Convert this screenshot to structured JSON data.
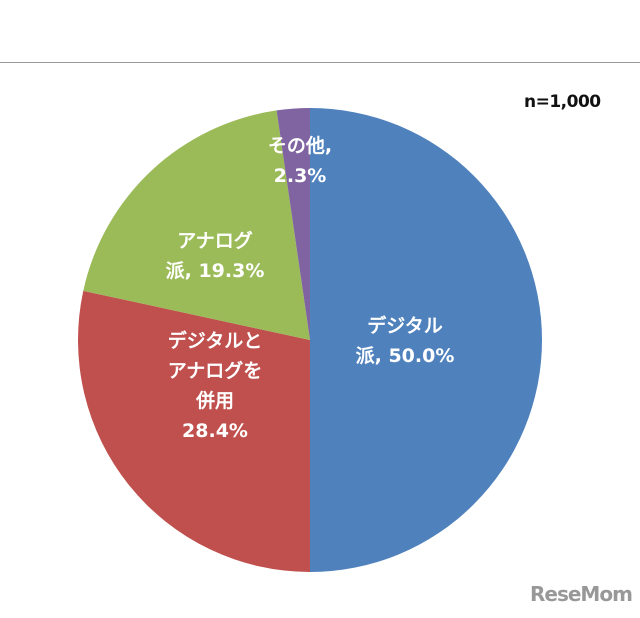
{
  "header": {
    "sample_size": "n=1,000"
  },
  "chart_data": {
    "type": "pie",
    "slices": [
      {
        "label_lines": [
          "デジタル",
          "派, 50.0%"
        ],
        "value": 50.0,
        "color": "#4f81bd"
      },
      {
        "label_lines": [
          "デジタルと",
          "アナログを",
          "併用",
          "28.4%"
        ],
        "value": 28.4,
        "color": "#c0504d"
      },
      {
        "label_lines": [
          "アナログ",
          "派, 19.3%"
        ],
        "value": 19.3,
        "color": "#9bbb59"
      },
      {
        "label_lines": [
          "その他,",
          "2.3%"
        ],
        "value": 2.3,
        "color": "#8064a2"
      }
    ]
  },
  "watermark": "ReseMom"
}
